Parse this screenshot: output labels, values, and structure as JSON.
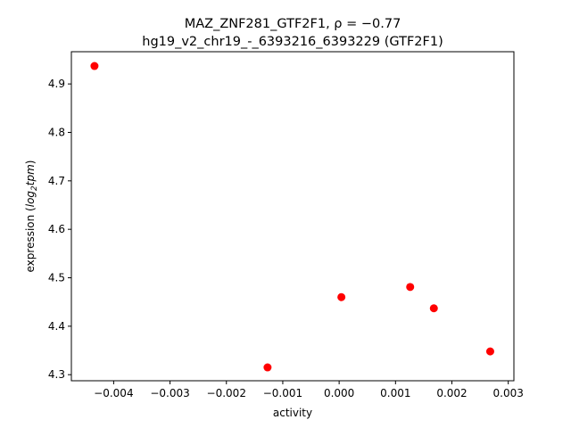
{
  "chart_data": {
    "type": "scatter",
    "title_line1": "MAZ_ZNF281_GTF2F1, ρ = −0.77",
    "title_line2": "hg19_v2_chr19_-_6393216_6393229 (GTF2F1)",
    "xlabel": "activity",
    "ylabel_prefix": "expression (",
    "ylabel_math": "log",
    "ylabel_sub": "2",
    "ylabel_math2": "tpm",
    "ylabel_suffix": ")",
    "xlim": [
      -0.00475,
      0.0031
    ],
    "ylim": [
      4.2875,
      4.9665
    ],
    "xticks": [
      -0.004,
      -0.003,
      -0.002,
      -0.001,
      0.0,
      0.001,
      0.002,
      0.003
    ],
    "xtick_labels": [
      "−0.004",
      "−0.003",
      "−0.002",
      "−0.001",
      "0.000",
      "0.001",
      "0.002",
      "0.003"
    ],
    "yticks": [
      4.3,
      4.4,
      4.5,
      4.6,
      4.7,
      4.8,
      4.9
    ],
    "ytick_labels": [
      "4.3",
      "4.4",
      "4.5",
      "4.6",
      "4.7",
      "4.8",
      "4.9"
    ],
    "points": [
      {
        "x": -0.00434,
        "y": 4.937
      },
      {
        "x": -0.00127,
        "y": 4.315
      },
      {
        "x": 4e-05,
        "y": 4.46
      },
      {
        "x": 0.00126,
        "y": 4.481
      },
      {
        "x": 0.00168,
        "y": 4.437
      },
      {
        "x": 0.00268,
        "y": 4.348
      }
    ],
    "point_color": "#ff0000",
    "grid": false
  }
}
